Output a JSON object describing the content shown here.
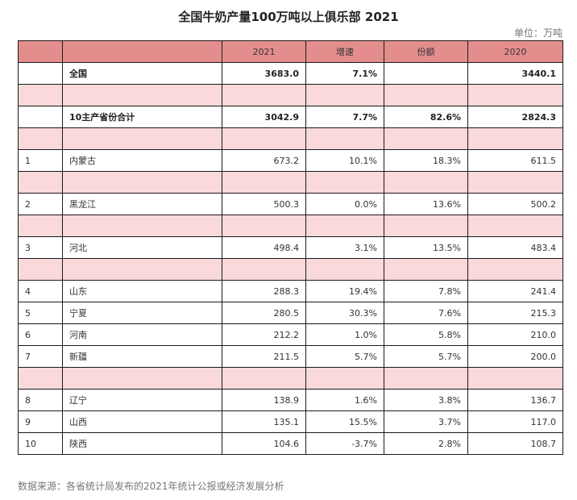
{
  "title": "全国牛奶产量100万吨以上俱乐部 2021",
  "unit": "单位：万吨",
  "headers": [
    "",
    "",
    "2021",
    "增速",
    "份额",
    "2020"
  ],
  "summary_rows": [
    {
      "rank": "",
      "name": "全国",
      "v2021": "3683.0",
      "growth": "7.1%",
      "share": "",
      "v2020": "3440.1"
    },
    {
      "rank": "",
      "name": "10主产省份合计",
      "v2021": "3042.9",
      "growth": "7.7%",
      "share": "82.6%",
      "v2020": "2824.3"
    }
  ],
  "province_rows": [
    {
      "rank": "1",
      "name": "内蒙古",
      "v2021": "673.2",
      "growth": "10.1%",
      "share": "18.3%",
      "v2020": "611.5"
    },
    {
      "rank": "2",
      "name": "黑龙江",
      "v2021": "500.3",
      "growth": "0.0%",
      "share": "13.6%",
      "v2020": "500.2"
    },
    {
      "rank": "3",
      "name": "河北",
      "v2021": "498.4",
      "growth": "3.1%",
      "share": "13.5%",
      "v2020": "483.4"
    },
    {
      "rank": "4",
      "name": "山东",
      "v2021": "288.3",
      "growth": "19.4%",
      "share": "7.8%",
      "v2020": "241.4"
    },
    {
      "rank": "5",
      "name": "宁夏",
      "v2021": "280.5",
      "growth": "30.3%",
      "share": "7.6%",
      "v2020": "215.3"
    },
    {
      "rank": "6",
      "name": "河南",
      "v2021": "212.2",
      "growth": "1.0%",
      "share": "5.8%",
      "v2020": "210.0"
    },
    {
      "rank": "7",
      "name": "新疆",
      "v2021": "211.5",
      "growth": "5.7%",
      "share": "5.7%",
      "v2020": "200.0"
    },
    {
      "rank": "8",
      "name": "辽宁",
      "v2021": "138.9",
      "growth": "1.6%",
      "share": "3.8%",
      "v2020": "136.7"
    },
    {
      "rank": "9",
      "name": "山西",
      "v2021": "135.1",
      "growth": "15.5%",
      "share": "3.7%",
      "v2020": "117.0"
    },
    {
      "rank": "10",
      "name": "陕西",
      "v2021": "104.6",
      "growth": "-3.7%",
      "share": "2.8%",
      "v2020": "108.7"
    }
  ],
  "source": "数据来源：各省统计局发布的2021年统计公报或经济发展分析",
  "colors": {
    "header_bg": "#e48d8d",
    "spacer_bg": "#f9d9d9",
    "border": "#1a1a1a"
  }
}
